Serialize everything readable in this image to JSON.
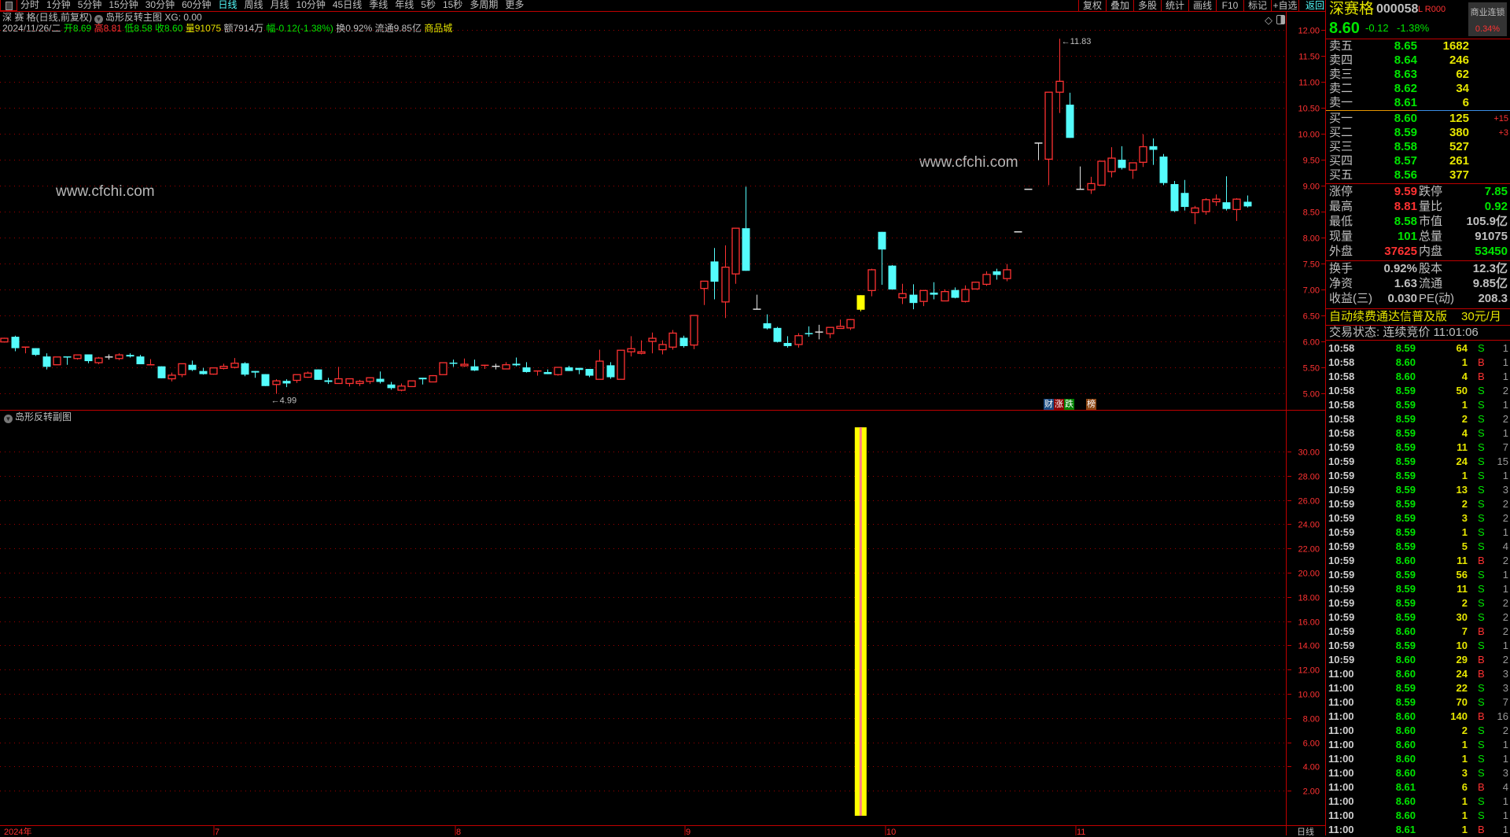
{
  "toolbar": {
    "periods": [
      "分时",
      "1分钟",
      "5分钟",
      "15分钟",
      "30分钟",
      "60分钟",
      "日线",
      "周线",
      "月线",
      "10分钟",
      "45日线",
      "季线",
      "年线",
      "5秒",
      "15秒",
      "多周期",
      "更多"
    ],
    "active_period": "日线",
    "actions": [
      "复权",
      "叠加",
      "多股",
      "统计",
      "画线",
      "F10",
      "标记",
      "+自选"
    ],
    "back_label": "返回"
  },
  "chart_header": {
    "title": "深 赛 格(日线,前复权)",
    "indicator": "岛形反转主图",
    "xg_label": "XG: 0.00",
    "date": "2024/11/26/二",
    "open_label": "开",
    "open": "8.69",
    "high_label": "高",
    "high": "8.81",
    "low_label": "低",
    "low": "8.58",
    "close_label": "收",
    "close": "8.60",
    "vol_label": "量",
    "vol": "91075",
    "amount": "额7914万",
    "change": "幅-0.12(-1.38%)",
    "turnover": "换0.92%",
    "float": "流通9.85亿",
    "sector": "商品城"
  },
  "watermark": "www.cfchi.com",
  "badges": [
    {
      "text": "财",
      "color": "#1a4a80"
    },
    {
      "text": "涨",
      "color": "#8b0000"
    },
    {
      "text": "跌",
      "color": "#008000"
    },
    {
      "text": "榜",
      "color": "#8b4513"
    }
  ],
  "sub_pane": {
    "title": "岛形反转副图"
  },
  "x_axis": {
    "labels": [
      "2024年",
      "7",
      "8",
      "9",
      "10",
      "11"
    ],
    "period_label": "日线"
  },
  "colors": {
    "up": "#ff3232",
    "down": "#54fcfc",
    "flat": "#e0e0e0",
    "signal": "#ffff00",
    "grid": "#a00000",
    "border": "#c00000"
  },
  "chart_data": [
    {
      "type": "candlestick",
      "ylim": [
        5.0,
        12.0
      ],
      "yticks": [
        "12.00",
        "11.50",
        "11.00",
        "10.50",
        "10.00",
        "9.50",
        "9.00",
        "8.50",
        "8.00",
        "7.50",
        "7.00",
        "6.50",
        "6.00",
        "5.50",
        "5.00"
      ],
      "grid": true,
      "max_label": "11.83",
      "min_label": "4.99",
      "ohlc": [
        [
          5.99,
          6.07,
          5.98,
          6.06
        ],
        [
          6.09,
          6.11,
          5.81,
          5.87
        ],
        [
          5.88,
          5.89,
          5.77,
          5.89
        ],
        [
          5.87,
          5.87,
          5.72,
          5.74
        ],
        [
          5.71,
          5.77,
          5.46,
          5.51
        ],
        [
          5.55,
          5.7,
          5.55,
          5.7
        ],
        [
          5.7,
          5.7,
          5.55,
          5.69
        ],
        [
          5.67,
          5.75,
          5.65,
          5.74
        ],
        [
          5.75,
          5.75,
          5.58,
          5.62
        ],
        [
          5.59,
          5.7,
          5.56,
          5.68
        ],
        [
          5.7,
          5.75,
          5.65,
          5.7
        ],
        [
          5.67,
          5.77,
          5.64,
          5.74
        ],
        [
          5.74,
          5.77,
          5.69,
          5.71
        ],
        [
          5.71,
          5.74,
          5.56,
          5.56
        ],
        [
          5.54,
          5.66,
          5.54,
          5.55
        ],
        [
          5.52,
          5.52,
          5.29,
          5.29
        ],
        [
          5.28,
          5.4,
          5.23,
          5.35
        ],
        [
          5.36,
          5.57,
          5.31,
          5.57
        ],
        [
          5.55,
          5.63,
          5.43,
          5.45
        ],
        [
          5.43,
          5.49,
          5.36,
          5.37
        ],
        [
          5.37,
          5.49,
          5.36,
          5.49
        ],
        [
          5.48,
          5.57,
          5.46,
          5.52
        ],
        [
          5.5,
          5.68,
          5.48,
          5.58
        ],
        [
          5.58,
          5.6,
          5.33,
          5.36
        ],
        [
          5.43,
          5.43,
          5.3,
          5.4
        ],
        [
          5.37,
          5.37,
          5.14,
          5.14
        ],
        [
          5.17,
          5.27,
          4.99,
          5.24
        ],
        [
          5.24,
          5.27,
          5.12,
          5.19
        ],
        [
          5.25,
          5.36,
          5.2,
          5.36
        ],
        [
          5.31,
          5.42,
          5.3,
          5.39
        ],
        [
          5.46,
          5.46,
          5.26,
          5.26
        ],
        [
          5.25,
          5.3,
          5.18,
          5.22
        ],
        [
          5.19,
          5.51,
          5.19,
          5.28
        ],
        [
          5.19,
          5.28,
          5.13,
          5.28
        ],
        [
          5.19,
          5.26,
          5.14,
          5.23
        ],
        [
          5.23,
          5.31,
          5.18,
          5.3
        ],
        [
          5.28,
          5.42,
          5.19,
          5.22
        ],
        [
          5.17,
          5.22,
          5.07,
          5.1
        ],
        [
          5.06,
          5.19,
          5.04,
          5.14
        ],
        [
          5.13,
          5.24,
          5.13,
          5.24
        ],
        [
          5.3,
          5.3,
          5.17,
          5.27
        ],
        [
          5.22,
          5.35,
          5.22,
          5.34
        ],
        [
          5.36,
          5.59,
          5.36,
          5.59
        ],
        [
          5.58,
          5.65,
          5.51,
          5.57
        ],
        [
          5.53,
          5.67,
          5.51,
          5.56
        ],
        [
          5.52,
          5.65,
          5.43,
          5.44
        ],
        [
          5.53,
          5.55,
          5.47,
          5.54
        ],
        [
          5.52,
          5.57,
          5.46,
          5.52
        ],
        [
          5.47,
          5.6,
          5.47,
          5.55
        ],
        [
          5.57,
          5.69,
          5.52,
          5.54
        ],
        [
          5.5,
          5.6,
          5.4,
          5.41
        ],
        [
          5.42,
          5.43,
          5.34,
          5.43
        ],
        [
          5.41,
          5.46,
          5.37,
          5.37
        ],
        [
          5.36,
          5.5,
          5.34,
          5.5
        ],
        [
          5.5,
          5.53,
          5.43,
          5.43
        ],
        [
          5.49,
          5.49,
          5.37,
          5.45
        ],
        [
          5.47,
          5.47,
          5.31,
          5.34
        ],
        [
          5.27,
          5.84,
          5.27,
          5.62
        ],
        [
          5.54,
          5.6,
          5.28,
          5.31
        ],
        [
          5.27,
          5.83,
          5.27,
          5.83
        ],
        [
          5.8,
          6.1,
          5.71,
          5.86
        ],
        [
          5.77,
          6.02,
          5.75,
          5.8
        ],
        [
          6.0,
          6.17,
          5.77,
          6.06
        ],
        [
          5.84,
          6.02,
          5.75,
          5.94
        ],
        [
          5.89,
          6.22,
          5.84,
          6.16
        ],
        [
          6.07,
          6.11,
          5.88,
          5.91
        ],
        [
          5.93,
          6.5,
          5.85,
          6.5
        ],
        [
          7.02,
          7.16,
          6.7,
          7.16
        ],
        [
          7.54,
          7.8,
          6.81,
          7.15
        ],
        [
          6.76,
          7.85,
          6.45,
          7.43
        ],
        [
          7.3,
          8.18,
          7.11,
          8.18
        ],
        [
          8.18,
          8.98,
          7.36,
          7.36
        ],
        [
          6.62,
          6.9,
          6.62,
          6.62
        ],
        [
          6.35,
          6.52,
          6.23,
          6.25
        ],
        [
          6.26,
          6.28,
          5.98,
          5.99
        ],
        [
          5.97,
          6.1,
          5.88,
          5.91
        ],
        [
          5.94,
          6.16,
          5.88,
          6.11
        ],
        [
          6.15,
          6.29,
          6.09,
          6.14
        ],
        [
          6.18,
          6.32,
          6.04,
          6.18
        ],
        [
          6.15,
          6.27,
          6.06,
          6.27
        ],
        [
          6.25,
          6.42,
          6.25,
          6.29
        ],
        [
          6.26,
          6.43,
          6.22,
          6.42
        ],
        [
          6.61,
          6.89,
          6.58,
          6.89
        ],
        [
          6.98,
          7.4,
          6.87,
          7.38
        ],
        [
          8.11,
          8.11,
          7.09,
          7.77
        ],
        [
          7.46,
          7.47,
          7.0,
          7.0
        ],
        [
          6.84,
          7.11,
          6.72,
          6.92
        ],
        [
          6.9,
          7.1,
          6.62,
          6.74
        ],
        [
          6.77,
          6.99,
          6.68,
          6.98
        ],
        [
          6.94,
          7.14,
          6.81,
          6.9
        ],
        [
          6.78,
          7.0,
          6.78,
          6.96
        ],
        [
          6.99,
          7.04,
          6.83,
          6.84
        ],
        [
          6.77,
          7.08,
          6.75,
          7.0
        ],
        [
          7.01,
          7.15,
          7.01,
          7.14
        ],
        [
          7.1,
          7.35,
          7.07,
          7.29
        ],
        [
          7.35,
          7.4,
          7.19,
          7.28
        ],
        [
          7.21,
          7.49,
          7.16,
          7.38
        ],
        [
          8.11,
          8.11,
          8.11,
          8.11
        ],
        [
          8.93,
          8.93,
          8.93,
          8.93
        ],
        [
          9.82,
          9.82,
          9.49,
          9.82
        ],
        [
          9.51,
          10.8,
          9.01,
          10.8
        ],
        [
          10.8,
          11.83,
          10.4,
          11.01
        ],
        [
          10.56,
          10.79,
          9.92,
          9.92
        ],
        [
          8.93,
          9.37,
          8.93,
          8.93
        ],
        [
          8.92,
          9.17,
          8.84,
          9.04
        ],
        [
          9.01,
          9.48,
          9.0,
          9.47
        ],
        [
          9.27,
          9.74,
          9.16,
          9.53
        ],
        [
          9.5,
          9.76,
          9.31,
          9.34
        ],
        [
          9.3,
          9.44,
          9.13,
          9.44
        ],
        [
          9.45,
          9.99,
          9.36,
          9.75
        ],
        [
          9.76,
          9.91,
          9.4,
          9.69
        ],
        [
          9.56,
          9.61,
          9.01,
          9.05
        ],
        [
          9.03,
          9.09,
          8.49,
          8.51
        ],
        [
          8.86,
          9.11,
          8.52,
          8.59
        ],
        [
          8.48,
          8.61,
          8.26,
          8.57
        ],
        [
          8.5,
          8.76,
          8.44,
          8.73
        ],
        [
          8.69,
          8.83,
          8.61,
          8.74
        ],
        [
          8.68,
          9.18,
          8.52,
          8.55
        ],
        [
          8.54,
          8.76,
          8.32,
          8.74
        ],
        [
          8.69,
          8.81,
          8.58,
          8.6
        ]
      ],
      "signal_candle": 83
    },
    {
      "type": "bar",
      "ylim": [
        0,
        32
      ],
      "yticks": [
        "30.00",
        "28.00",
        "26.00",
        "24.00",
        "22.00",
        "20.00",
        "18.00",
        "16.00",
        "14.00",
        "12.00",
        "10.00",
        "8.00",
        "6.00",
        "4.00",
        "2.00"
      ],
      "grid": true,
      "bars": [
        {
          "candle": 83,
          "value": 32
        }
      ]
    }
  ],
  "quote": {
    "name": "深赛格",
    "code": "000058",
    "flags": "L R000",
    "price": "8.60",
    "change": "-0.12",
    "change_pct": "-1.38%",
    "sector": "商业连锁",
    "sector_pct": "0.34%",
    "asks": [
      {
        "label": "卖五",
        "price": "8.65",
        "vol": "1682",
        "delta": ""
      },
      {
        "label": "卖四",
        "price": "8.64",
        "vol": "246",
        "delta": ""
      },
      {
        "label": "卖三",
        "price": "8.63",
        "vol": "62",
        "delta": ""
      },
      {
        "label": "卖二",
        "price": "8.62",
        "vol": "34",
        "delta": ""
      },
      {
        "label": "卖一",
        "price": "8.61",
        "vol": "6",
        "delta": ""
      }
    ],
    "bids": [
      {
        "label": "买一",
        "price": "8.60",
        "vol": "125",
        "delta": "+15"
      },
      {
        "label": "买二",
        "price": "8.59",
        "vol": "380",
        "delta": "+3"
      },
      {
        "label": "买三",
        "price": "8.58",
        "vol": "527",
        "delta": ""
      },
      {
        "label": "买四",
        "price": "8.57",
        "vol": "261",
        "delta": ""
      },
      {
        "label": "买五",
        "price": "8.56",
        "vol": "377",
        "delta": ""
      }
    ],
    "stats1": [
      {
        "l1": "涨停",
        "v1": "9.59",
        "c1": "r",
        "l2": "跌停",
        "v2": "7.85",
        "c2": "g"
      },
      {
        "l1": "最高",
        "v1": "8.81",
        "c1": "r",
        "l2": "量比",
        "v2": "0.92",
        "c2": "g"
      },
      {
        "l1": "最低",
        "v1": "8.58",
        "c1": "g",
        "l2": "市值",
        "v2": "105.9亿",
        "c2": "w"
      },
      {
        "l1": "现量",
        "v1": "101",
        "c1": "g",
        "l2": "总量",
        "v2": "91075",
        "c2": "w"
      },
      {
        "l1": "外盘",
        "v1": "37625",
        "c1": "r",
        "l2": "内盘",
        "v2": "53450",
        "c2": "g"
      }
    ],
    "stats2": [
      {
        "l1": "换手",
        "v1": "0.92%",
        "c1": "w",
        "l2": "股本",
        "v2": "12.3亿",
        "c2": "w"
      },
      {
        "l1": "净资",
        "v1": "1.63",
        "c1": "w",
        "l2": "流通",
        "v2": "9.85亿",
        "c2": "w"
      },
      {
        "l1": "收益(三)",
        "v1": "0.030",
        "c1": "w",
        "l2": "PE(动)",
        "v2": "208.3",
        "c2": "w"
      }
    ],
    "promo": "自动续费通达信普及版",
    "promo_price": "30元/月",
    "status": "交易状态: 连续竞价 11:01:06"
  },
  "ticks": [
    [
      "10:58",
      "8.59",
      "64",
      "S",
      "1"
    ],
    [
      "10:58",
      "8.60",
      "1",
      "B",
      "1"
    ],
    [
      "10:58",
      "8.60",
      "4",
      "B",
      "1"
    ],
    [
      "10:58",
      "8.59",
      "50",
      "S",
      "2"
    ],
    [
      "10:58",
      "8.59",
      "1",
      "S",
      "1"
    ],
    [
      "10:58",
      "8.59",
      "2",
      "S",
      "2"
    ],
    [
      "10:58",
      "8.59",
      "4",
      "S",
      "1"
    ],
    [
      "10:59",
      "8.59",
      "11",
      "S",
      "7"
    ],
    [
      "10:59",
      "8.59",
      "24",
      "S",
      "15"
    ],
    [
      "10:59",
      "8.59",
      "1",
      "S",
      "1"
    ],
    [
      "10:59",
      "8.59",
      "13",
      "S",
      "3"
    ],
    [
      "10:59",
      "8.59",
      "2",
      "S",
      "2"
    ],
    [
      "10:59",
      "8.59",
      "3",
      "S",
      "2"
    ],
    [
      "10:59",
      "8.59",
      "1",
      "S",
      "1"
    ],
    [
      "10:59",
      "8.59",
      "5",
      "S",
      "4"
    ],
    [
      "10:59",
      "8.60",
      "11",
      "B",
      "2"
    ],
    [
      "10:59",
      "8.59",
      "56",
      "S",
      "1"
    ],
    [
      "10:59",
      "8.59",
      "11",
      "S",
      "1"
    ],
    [
      "10:59",
      "8.59",
      "2",
      "S",
      "2"
    ],
    [
      "10:59",
      "8.59",
      "30",
      "S",
      "2"
    ],
    [
      "10:59",
      "8.60",
      "7",
      "B",
      "2"
    ],
    [
      "10:59",
      "8.59",
      "10",
      "S",
      "1"
    ],
    [
      "10:59",
      "8.60",
      "29",
      "B",
      "2"
    ],
    [
      "11:00",
      "8.60",
      "24",
      "B",
      "3"
    ],
    [
      "11:00",
      "8.59",
      "22",
      "S",
      "3"
    ],
    [
      "11:00",
      "8.59",
      "70",
      "S",
      "7"
    ],
    [
      "11:00",
      "8.60",
      "140",
      "B",
      "16"
    ],
    [
      "11:00",
      "8.60",
      "2",
      "S",
      "2"
    ],
    [
      "11:00",
      "8.60",
      "1",
      "S",
      "1"
    ],
    [
      "11:00",
      "8.60",
      "1",
      "S",
      "1"
    ],
    [
      "11:00",
      "8.60",
      "3",
      "S",
      "3"
    ],
    [
      "11:00",
      "8.61",
      "6",
      "B",
      "4"
    ],
    [
      "11:00",
      "8.60",
      "1",
      "S",
      "1"
    ],
    [
      "11:00",
      "8.60",
      "1",
      "S",
      "1"
    ],
    [
      "11:00",
      "8.61",
      "1",
      "B",
      "1"
    ]
  ]
}
